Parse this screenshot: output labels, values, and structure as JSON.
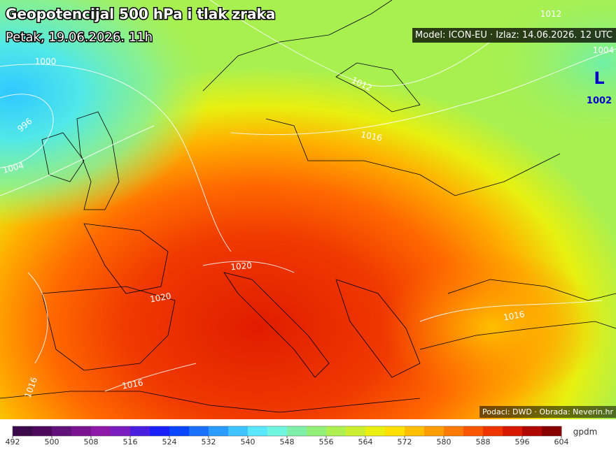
{
  "header": {
    "title": "Geopotencijal 500 hPa i tlak zraka",
    "subtitle": "Petak, 19.06.2026. 11h",
    "model": "Model: ICON-EU · Izlaz: 14.06.2026. 12 UTC"
  },
  "map": {
    "low": {
      "symbol": "L",
      "pressure": 1002
    },
    "isobar_labels": [
      1012,
      1004,
      1000,
      996,
      1004,
      1012,
      1016,
      1020,
      1020,
      1016,
      1016,
      1016
    ]
  },
  "footer": {
    "source": "Podaci: DWD · Obrada: Neverin.hr"
  },
  "colorbar": {
    "unit": "gpdm",
    "ticks": [
      492,
      500,
      508,
      516,
      524,
      532,
      540,
      548,
      556,
      564,
      572,
      580,
      588,
      596,
      604
    ],
    "colors": [
      "#3b0a4a",
      "#4d0a5c",
      "#62107a",
      "#7a1392",
      "#8e18a8",
      "#7a1cc0",
      "#4a1ee0",
      "#1a20f8",
      "#0a45ff",
      "#1a70ff",
      "#2a9cff",
      "#40c4ff",
      "#5ae8ff",
      "#70f5e0",
      "#80f0a8",
      "#92f078",
      "#aef050",
      "#ccf030",
      "#ecf010",
      "#ffe000",
      "#ffbe00",
      "#ff9c00",
      "#ff7a00",
      "#ff5600",
      "#f03400",
      "#d81800",
      "#b00800",
      "#880000"
    ]
  }
}
